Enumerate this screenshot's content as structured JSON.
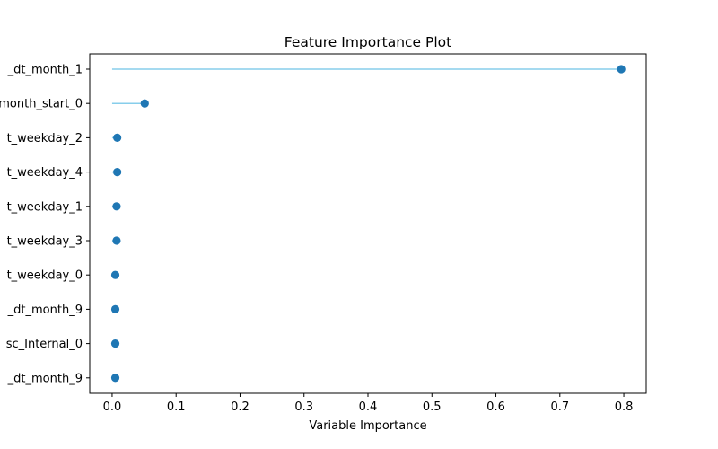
{
  "chart_data": {
    "type": "lollipop",
    "orientation": "horizontal",
    "title": "Feature Importance Plot",
    "xlabel": "Variable Importance",
    "ylabel": "",
    "xlim": [
      -0.035,
      0.835
    ],
    "xticks": [
      0.0,
      0.1,
      0.2,
      0.3,
      0.4,
      0.5,
      0.6,
      0.7,
      0.8
    ],
    "xtick_labels": [
      "0.0",
      "0.1",
      "0.2",
      "0.3",
      "0.4",
      "0.5",
      "0.6",
      "0.7",
      "0.8"
    ],
    "grid": false,
    "colors": {
      "stem": "#87ceeb",
      "marker": "#1f77b4"
    },
    "categories": [
      "_dt_month_1",
      "month_start_0",
      "t_weekday_2",
      "t_weekday_4",
      "t_weekday_1",
      "t_weekday_3",
      "t_weekday_0",
      "_dt_month_9",
      "sc_Internal_0",
      "_dt_month_9"
    ],
    "values": [
      0.796,
      0.051,
      0.008,
      0.008,
      0.007,
      0.007,
      0.005,
      0.005,
      0.005,
      0.005
    ]
  }
}
